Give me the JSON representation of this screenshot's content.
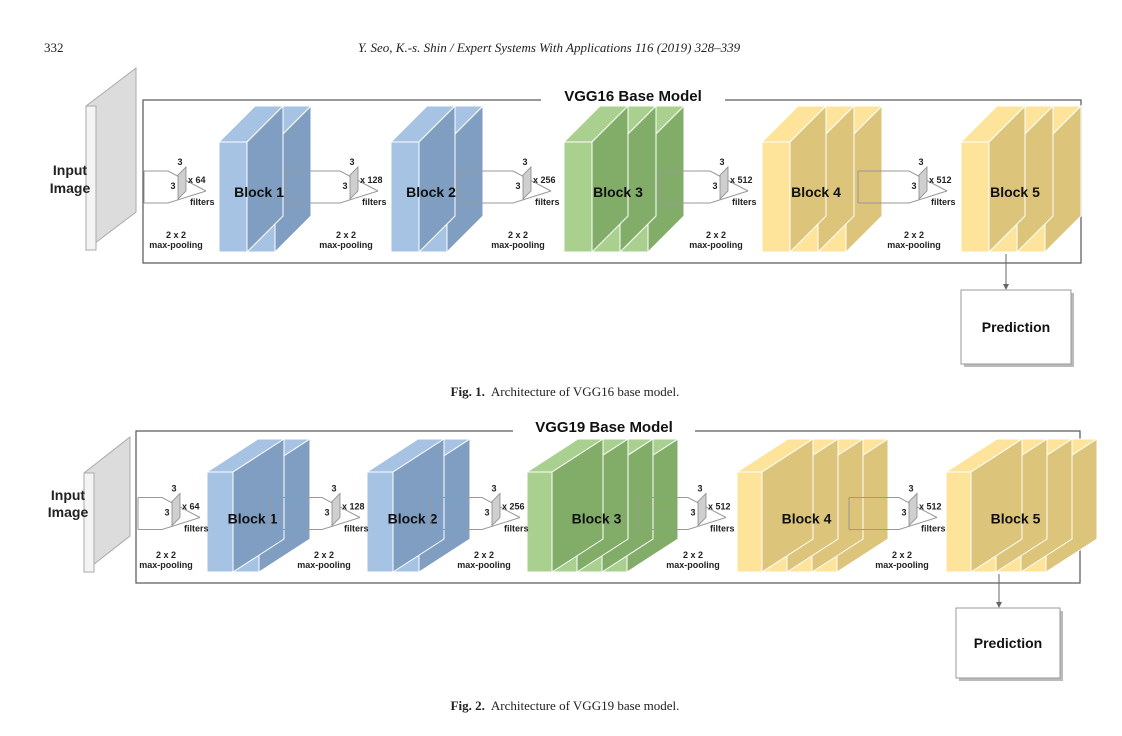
{
  "header": {
    "page_number": "332",
    "citation": "Y. Seo, K.-s. Shin / Expert Systems With Applications 116 (2019) 328–339"
  },
  "figures": [
    {
      "diagram_title": "VGG16 Base Model",
      "input_label_1": "Input",
      "input_label_2": "Image",
      "blocks": [
        {
          "label": "Block 1",
          "color": "#a6c3e3",
          "side": "#7f9ec2"
        },
        {
          "label": "Block 2",
          "color": "#a6c3e3",
          "side": "#7f9ec2"
        },
        {
          "label": "Block 3",
          "color": "#a9d08e",
          "side": "#82ad68"
        },
        {
          "label": "Block 4",
          "color": "#fde49a",
          "side": "#dcc47a"
        },
        {
          "label": "Block 5",
          "color": "#fde49a",
          "side": "#dcc47a"
        }
      ],
      "conv_layers": [
        2,
        2,
        3,
        3,
        3
      ],
      "filters": [
        "x 64",
        "x 128",
        "x 256",
        "x 512",
        "x 512"
      ],
      "kernel": "3",
      "filters_label": "filters",
      "pool_label_1": "2 x 2",
      "pool_label_2": "max-pooling",
      "prediction": "Prediction",
      "caption_label": "Fig. 1.",
      "caption_text": "Architecture of VGG16 base model."
    },
    {
      "diagram_title": "VGG19 Base Model",
      "input_label_1": "Input",
      "input_label_2": "Image",
      "blocks": [
        {
          "label": "Block 1",
          "color": "#a6c3e3",
          "side": "#7f9ec2"
        },
        {
          "label": "Block 2",
          "color": "#a6c3e3",
          "side": "#7f9ec2"
        },
        {
          "label": "Block 3",
          "color": "#a9d08e",
          "side": "#82ad68"
        },
        {
          "label": "Block 4",
          "color": "#fde49a",
          "side": "#dcc47a"
        },
        {
          "label": "Block 5",
          "color": "#fde49a",
          "side": "#dcc47a"
        }
      ],
      "conv_layers": [
        2,
        2,
        4,
        4,
        4
      ],
      "filters": [
        "x 64",
        "x 128",
        "x 256",
        "x 512",
        "x 512"
      ],
      "kernel": "3",
      "filters_label": "filters",
      "pool_label_1": "2 x 2",
      "pool_label_2": "max-pooling",
      "prediction": "Prediction",
      "caption_label": "Fig. 2.",
      "caption_text": "Architecture of VGG19 base model."
    }
  ]
}
